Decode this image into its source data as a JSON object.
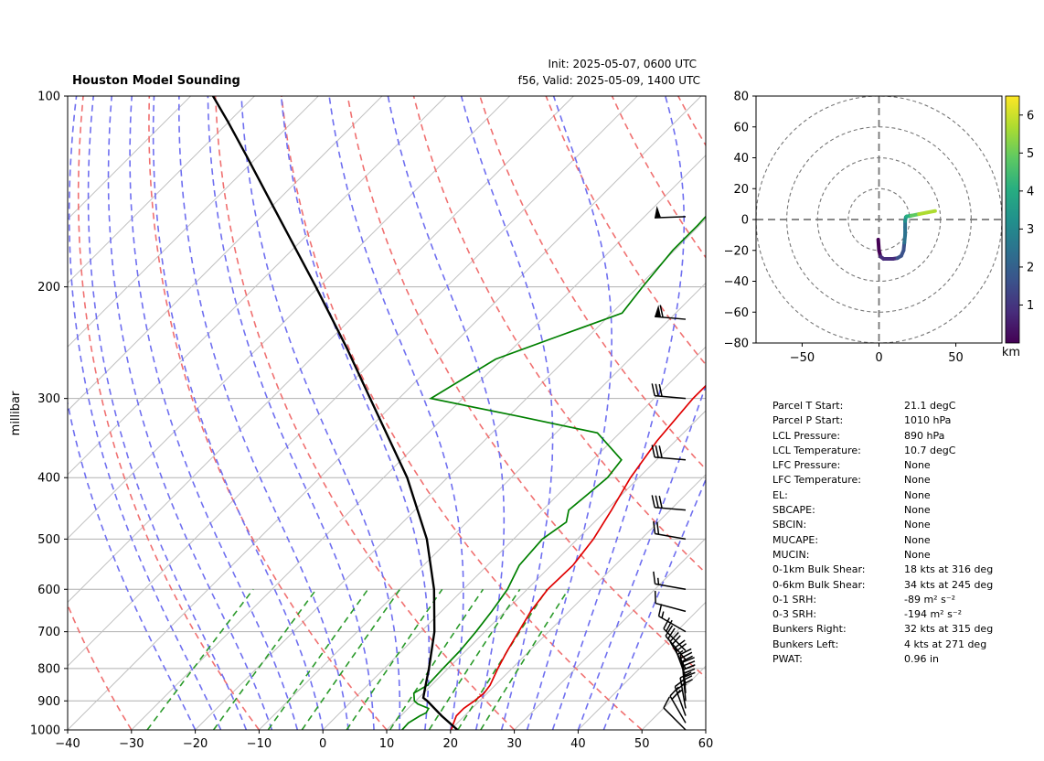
{
  "chart_data": [
    {
      "type": "line",
      "title": "Houston Model Sounding",
      "subtitle": [
        "Init: 2025-05-07, 0600 UTC",
        "f56, Valid: 2025-05-09, 1400 UTC"
      ],
      "ylabel": "millibar",
      "xlabel": "",
      "xlim": [
        -40,
        60
      ],
      "ylim": [
        1000,
        100
      ],
      "yscale": "log",
      "grid": true,
      "x_ticks": [
        -40,
        -30,
        -20,
        -10,
        0,
        10,
        20,
        30,
        40,
        50,
        60
      ],
      "y_ticks": [
        1000,
        900,
        800,
        700,
        600,
        500,
        400,
        300,
        200,
        100
      ],
      "series": [
        {
          "color": "#e00000",
          "pressure": [
            1000,
            975,
            950,
            925,
            900,
            875,
            850,
            800,
            750,
            700,
            650,
            600,
            550,
            500,
            450,
            400,
            350,
            300,
            275,
            250,
            200,
            150,
            125,
            110,
            100
          ],
          "values": [
            20.1,
            19.4,
            18.7,
            18.7,
            19.2,
            19.5,
            19.2,
            17.8,
            16.5,
            15.3,
            14.0,
            13.2,
            13.4,
            12.5,
            10.8,
            8.7,
            7.1,
            6.1,
            6.1,
            6.3,
            8.2,
            12.7,
            17.3,
            21.5,
            23.7
          ]
        },
        {
          "color": "#008000",
          "pressure": [
            1000,
            975,
            950,
            940,
            925,
            910,
            900,
            875,
            850,
            800,
            750,
            700,
            650,
            600,
            550,
            500,
            470,
            450,
            420,
            400,
            375,
            340,
            320,
            300,
            260,
            240,
            220,
            200,
            175,
            160,
            140,
            120,
            110,
            100
          ],
          "values": [
            12.4,
            12.3,
            13.0,
            13.5,
            13.2,
            10.8,
            9.8,
            8.5,
            9.4,
            9.2,
            9.1,
            8.6,
            7.9,
            6.9,
            5.0,
            4.5,
            5.6,
            4.1,
            4.7,
            5.1,
            4.5,
            -3.5,
            -18.5,
            -35.0,
            -31.0,
            -25.0,
            -18.4,
            -19.3,
            -20.3,
            -20.3,
            -20.8,
            -22.7,
            -24.8,
            -28.1
          ]
        },
        {
          "color": "#000000",
          "pressure": [
            1000,
            950,
            900,
            890,
            850,
            800,
            700,
            600,
            500,
            400,
            300,
            250,
            200,
            150,
            125,
            110,
            100
          ],
          "values": [
            21.1,
            16.4,
            11.8,
            10.7,
            9.1,
            7.0,
            2.1,
            -4.6,
            -13.6,
            -26.3,
            -44.5,
            -56.0,
            -70.5,
            -89.5,
            -101.5,
            -110.0,
            -116.5
          ]
        }
      ],
      "barbs": {
        "pressure": [
          1000,
          975,
          950,
          925,
          900,
          875,
          850,
          825,
          800,
          775,
          750,
          700,
          650,
          600,
          500,
          450,
          375,
          300,
          225,
          155
        ],
        "speed_kt": [
          10,
          22,
          24,
          28,
          30,
          33,
          28,
          24,
          22,
          20,
          18,
          14,
          12,
          14,
          18,
          28,
          28,
          28,
          62,
          48
        ],
        "direction_deg": [
          315,
          330,
          340,
          350,
          355,
          355,
          350,
          340,
          330,
          320,
          315,
          300,
          285,
          280,
          280,
          275,
          275,
          275,
          275,
          268
        ]
      }
    },
    {
      "type": "line",
      "subtype": "hodograph",
      "xlim": [
        -80,
        80
      ],
      "ylim": [
        -80,
        80
      ],
      "x_ticks": [
        -50,
        0,
        50
      ],
      "y_ticks": [
        -80,
        -60,
        -40,
        -20,
        0,
        20,
        40,
        60,
        80
      ],
      "rings": [
        20,
        40,
        60,
        80
      ],
      "colorbar_label": "km",
      "colorbar_ticks": [
        1,
        2,
        3,
        4,
        5,
        6
      ],
      "colorbar_range": [
        0,
        6.5
      ],
      "u": [
        -0.5,
        0.0,
        1.0,
        3.0,
        6.0,
        9.0,
        12.0,
        14.5,
        16.0,
        16.5,
        17.0,
        17.0,
        17.0,
        17.5,
        18.0,
        21.0,
        26.0,
        31.0,
        36.5
      ],
      "v": [
        -13.0,
        -20.0,
        -24.0,
        -25.5,
        -25.5,
        -25.5,
        -25.0,
        -23.5,
        -20.0,
        -15.0,
        -10.0,
        -5.0,
        -1.0,
        1.5,
        2.0,
        2.5,
        3.5,
        4.5,
        5.5
      ],
      "height_km": [
        0.0,
        0.2,
        0.4,
        0.6,
        0.8,
        1.0,
        1.2,
        1.4,
        1.7,
        2.0,
        2.3,
        2.6,
        3.0,
        3.4,
        3.8,
        4.4,
        5.0,
        5.6,
        6.3
      ]
    }
  ],
  "stats": [
    {
      "label": "Parcel T Start:",
      "value": "21.1 degC"
    },
    {
      "label": "Parcel P Start:",
      "value": "1010 hPa"
    },
    {
      "label": "LCL Pressure:",
      "value": "890 hPa"
    },
    {
      "label": "LCL Temperature:",
      "value": "10.7 degC"
    },
    {
      "label": "LFC Pressure:",
      "value": "None"
    },
    {
      "label": "LFC Temperature:",
      "value": "None"
    },
    {
      "label": "EL:",
      "value": "None"
    },
    {
      "label": "SBCAPE:",
      "value": "None"
    },
    {
      "label": "SBCIN:",
      "value": "None"
    },
    {
      "label": "MUCAPE:",
      "value": "None"
    },
    {
      "label": "MUCIN:",
      "value": "None"
    },
    {
      "label": "0-1km Bulk Shear:",
      "value": "18 kts at 316 deg"
    },
    {
      "label": "0-6km Bulk Shear:",
      "value": "34 kts at 245 deg"
    },
    {
      "label": "0-1 SRH:",
      "value": "-89 m² s⁻²"
    },
    {
      "label": "0-3 SRH:",
      "value": "-194 m² s⁻²"
    },
    {
      "label": "Bunkers Right:",
      "value": "32 kts at 315 deg"
    },
    {
      "label": "Bunkers Left:",
      "value": "4 kts at 271 deg"
    },
    {
      "label": "PWAT:",
      "value": "0.96 in"
    }
  ]
}
